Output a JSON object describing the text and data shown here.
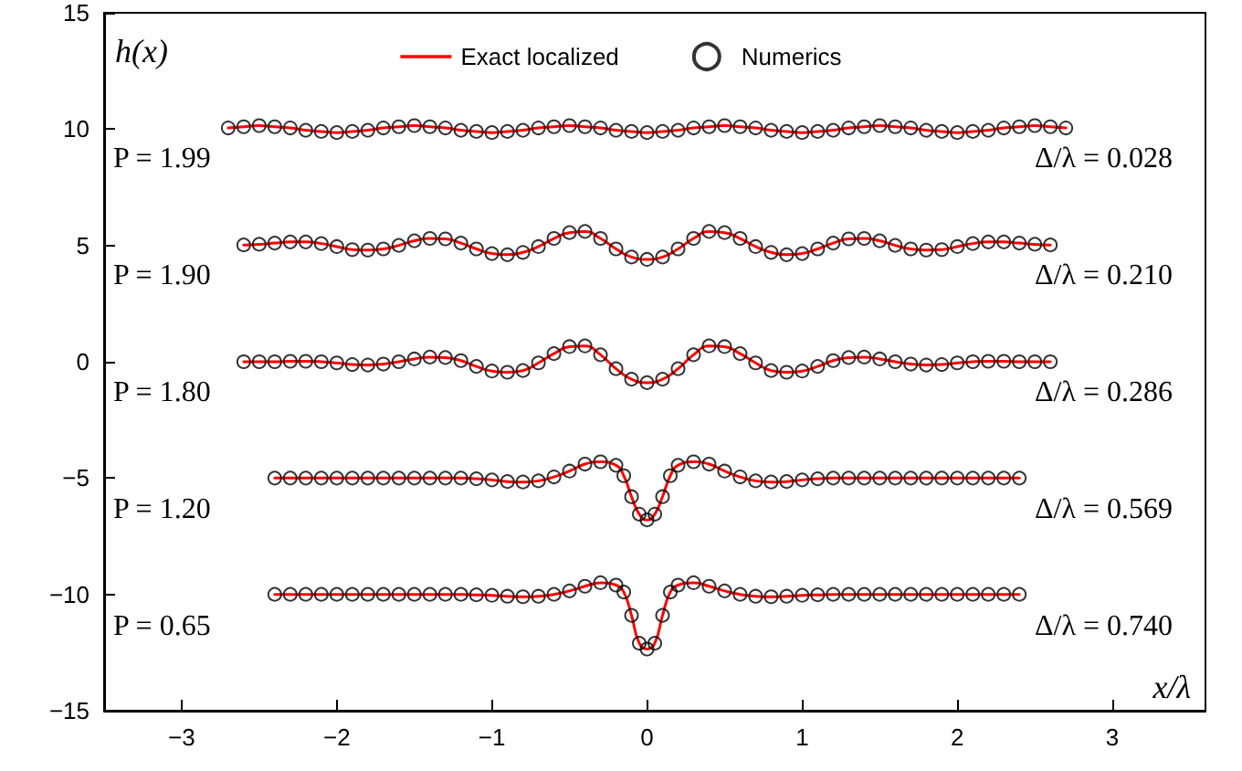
{
  "chart_data": {
    "type": "line",
    "xlabel": "x/λ",
    "ylabel": "h(x)",
    "xlim": [
      -3.5,
      3.6
    ],
    "xticks": [
      -3,
      -2,
      -1,
      0,
      1,
      2,
      3
    ],
    "ylim": [
      -15,
      15
    ],
    "yticks": [
      -15,
      -10,
      -5,
      0,
      5,
      10,
      15
    ],
    "grid": false,
    "legend": "top",
    "annotations": [
      "P = 1.99",
      "Δ/λ = 0.028",
      "P = 1.90",
      "Δ/λ = 0.210",
      "P = 1.80",
      "Δ/λ = 0.286",
      "P = 1.20",
      "Δ/λ = 0.569",
      "P = 0.65",
      "Δ/λ = 0.740"
    ],
    "series": [
      {
        "name": "Exact localized",
        "color": "#ff0000",
        "marker": "none",
        "line_style": "solid",
        "x": [
          -2.7,
          -2.6,
          -2.5,
          -2.4,
          -2.3,
          -2.2,
          -2.1,
          -2,
          -1.9,
          -1.8,
          -1.7,
          -1.6,
          -1.5,
          -1.4,
          -1.3,
          -1.2,
          -1.1,
          -1,
          -0.9,
          -0.8,
          -0.7,
          -0.6,
          -0.5,
          -0.4,
          -0.3,
          -0.2,
          -0.1,
          0,
          0.1,
          0.2,
          0.3,
          0.4,
          0.5,
          0.6,
          0.7,
          0.8,
          0.9,
          1,
          1.1,
          1.2,
          1.3,
          1.4,
          1.5,
          1.6,
          1.7,
          1.8,
          1.9,
          2,
          2.1,
          2.2,
          2.3,
          2.4,
          2.5,
          2.6,
          2.7
        ],
        "values": [
          10.05,
          10.1,
          10.15,
          10.1,
          10.05,
          9.95,
          9.9,
          9.85,
          9.9,
          9.95,
          10.05,
          10.1,
          10.15,
          10.1,
          10.05,
          9.95,
          9.9,
          9.85,
          9.9,
          9.95,
          10.05,
          10.1,
          10.15,
          10.1,
          10.05,
          9.95,
          9.9,
          9.85,
          9.9,
          9.95,
          10.05,
          10.1,
          10.15,
          10.1,
          10.05,
          9.95,
          9.9,
          9.85,
          9.9,
          9.95,
          10.05,
          10.1,
          10.15,
          10.1,
          10.05,
          9.95,
          9.9,
          9.85,
          9.9,
          9.95,
          10.05,
          10.1,
          10.15,
          10.1,
          10.05
        ]
      },
      {
        "type": "scatter",
        "name": "Numerics",
        "color": "#000000",
        "marker": "circle",
        "x": [
          -2.7,
          -2.6,
          -2.5,
          -2.4,
          -2.3,
          -2.2,
          -2.1,
          -2,
          -1.9,
          -1.8,
          -1.7,
          -1.6,
          -1.5,
          -1.4,
          -1.3,
          -1.2,
          -1.1,
          -1,
          -0.9,
          -0.8,
          -0.7,
          -0.6,
          -0.5,
          -0.4,
          -0.3,
          -0.2,
          -0.1,
          0,
          0.1,
          0.2,
          0.3,
          0.4,
          0.5,
          0.6,
          0.7,
          0.8,
          0.9,
          1,
          1.1,
          1.2,
          1.3,
          1.4,
          1.5,
          1.6,
          1.7,
          1.8,
          1.9,
          2,
          2.1,
          2.2,
          2.3,
          2.4,
          2.5,
          2.6,
          2.7
        ],
        "values": [
          10.05,
          10.1,
          10.15,
          10.1,
          10.05,
          9.95,
          9.9,
          9.85,
          9.9,
          9.95,
          10.05,
          10.1,
          10.15,
          10.1,
          10.05,
          9.95,
          9.9,
          9.85,
          9.9,
          9.95,
          10.05,
          10.1,
          10.15,
          10.1,
          10.05,
          9.95,
          9.9,
          9.85,
          9.9,
          9.95,
          10.05,
          10.1,
          10.15,
          10.1,
          10.05,
          9.95,
          9.9,
          9.85,
          9.9,
          9.95,
          10.05,
          10.1,
          10.15,
          10.1,
          10.05,
          9.95,
          9.9,
          9.85,
          9.9,
          9.95,
          10.05,
          10.1,
          10.15,
          10.1,
          10.05
        ]
      },
      {
        "color": "#ff0000",
        "marker": "none",
        "line_style": "solid",
        "x": [
          -2.6,
          -2.5,
          -2.4,
          -2.3,
          -2.2,
          -2.1,
          -2,
          -1.9,
          -1.8,
          -1.7,
          -1.6,
          -1.5,
          -1.4,
          -1.3,
          -1.2,
          -1.1,
          -1,
          -0.9,
          -0.8,
          -0.7,
          -0.6,
          -0.5,
          -0.4,
          -0.3,
          -0.2,
          -0.1,
          0,
          0.1,
          0.2,
          0.3,
          0.4,
          0.5,
          0.6,
          0.7,
          0.8,
          0.9,
          1,
          1.1,
          1.2,
          1.3,
          1.4,
          1.5,
          1.6,
          1.7,
          1.8,
          1.9,
          2,
          2.1,
          2.2,
          2.3,
          2.4,
          2.5,
          2.6
        ],
        "values": [
          5.02,
          5.05,
          5.1,
          5.15,
          5.15,
          5.08,
          4.95,
          4.82,
          4.8,
          4.85,
          5.0,
          5.2,
          5.3,
          5.28,
          5.1,
          4.85,
          4.65,
          4.6,
          4.7,
          4.95,
          5.3,
          5.55,
          5.6,
          5.3,
          4.85,
          4.5,
          4.4,
          4.5,
          4.85,
          5.3,
          5.6,
          5.55,
          5.3,
          4.95,
          4.7,
          4.6,
          4.65,
          4.85,
          5.1,
          5.28,
          5.3,
          5.2,
          5.0,
          4.85,
          4.8,
          4.82,
          4.95,
          5.08,
          5.15,
          5.15,
          5.1,
          5.05,
          5.02
        ]
      },
      {
        "type": "scatter",
        "color": "#000000",
        "marker": "circle",
        "x": [
          -2.6,
          -2.5,
          -2.4,
          -2.3,
          -2.2,
          -2.1,
          -2,
          -1.9,
          -1.8,
          -1.7,
          -1.6,
          -1.5,
          -1.4,
          -1.3,
          -1.2,
          -1.1,
          -1,
          -0.9,
          -0.8,
          -0.7,
          -0.6,
          -0.5,
          -0.4,
          -0.3,
          -0.2,
          -0.1,
          0,
          0.1,
          0.2,
          0.3,
          0.4,
          0.5,
          0.6,
          0.7,
          0.8,
          0.9,
          1,
          1.1,
          1.2,
          1.3,
          1.4,
          1.5,
          1.6,
          1.7,
          1.8,
          1.9,
          2,
          2.1,
          2.2,
          2.3,
          2.4,
          2.5,
          2.6
        ],
        "values": [
          5.02,
          5.05,
          5.1,
          5.15,
          5.15,
          5.08,
          4.95,
          4.82,
          4.8,
          4.85,
          5.0,
          5.2,
          5.3,
          5.28,
          5.1,
          4.85,
          4.65,
          4.6,
          4.7,
          4.95,
          5.3,
          5.55,
          5.6,
          5.3,
          4.85,
          4.5,
          4.4,
          4.5,
          4.85,
          5.3,
          5.6,
          5.55,
          5.3,
          4.95,
          4.7,
          4.6,
          4.65,
          4.85,
          5.1,
          5.28,
          5.3,
          5.2,
          5.0,
          4.85,
          4.8,
          4.82,
          4.95,
          5.08,
          5.15,
          5.15,
          5.1,
          5.05,
          5.02
        ]
      },
      {
        "color": "#ff0000",
        "marker": "none",
        "line_style": "solid",
        "x": [
          -2.6,
          -2.5,
          -2.4,
          -2.3,
          -2.2,
          -2.1,
          -2,
          -1.9,
          -1.8,
          -1.7,
          -1.6,
          -1.5,
          -1.4,
          -1.3,
          -1.2,
          -1.1,
          -1,
          -0.9,
          -0.8,
          -0.7,
          -0.6,
          -0.5,
          -0.4,
          -0.3,
          -0.2,
          -0.1,
          0,
          0.1,
          0.2,
          0.3,
          0.4,
          0.5,
          0.6,
          0.7,
          0.8,
          0.9,
          1,
          1.1,
          1.2,
          1.3,
          1.4,
          1.5,
          1.6,
          1.7,
          1.8,
          1.9,
          2,
          2.1,
          2.2,
          2.3,
          2.4,
          2.5,
          2.6
        ],
        "values": [
          0,
          0,
          0,
          0.02,
          0.02,
          0,
          -0.05,
          -0.12,
          -0.14,
          -0.1,
          0,
          0.12,
          0.2,
          0.18,
          0.05,
          -0.2,
          -0.4,
          -0.45,
          -0.38,
          -0.05,
          0.35,
          0.65,
          0.68,
          0.3,
          -0.3,
          -0.75,
          -0.9,
          -0.75,
          -0.3,
          0.3,
          0.68,
          0.65,
          0.35,
          -0.05,
          -0.38,
          -0.45,
          -0.4,
          -0.2,
          0.05,
          0.18,
          0.2,
          0.12,
          0,
          -0.1,
          -0.14,
          -0.12,
          -0.05,
          0,
          0.02,
          0.02,
          0,
          0,
          0
        ]
      },
      {
        "type": "scatter",
        "color": "#000000",
        "marker": "circle",
        "x": [
          -2.6,
          -2.5,
          -2.4,
          -2.3,
          -2.2,
          -2.1,
          -2,
          -1.9,
          -1.8,
          -1.7,
          -1.6,
          -1.5,
          -1.4,
          -1.3,
          -1.2,
          -1.1,
          -1,
          -0.9,
          -0.8,
          -0.7,
          -0.6,
          -0.5,
          -0.4,
          -0.3,
          -0.2,
          -0.1,
          0,
          0.1,
          0.2,
          0.3,
          0.4,
          0.5,
          0.6,
          0.7,
          0.8,
          0.9,
          1,
          1.1,
          1.2,
          1.3,
          1.4,
          1.5,
          1.6,
          1.7,
          1.8,
          1.9,
          2,
          2.1,
          2.2,
          2.3,
          2.4,
          2.5,
          2.6
        ],
        "values": [
          0,
          0,
          0,
          0.02,
          0.02,
          0,
          -0.05,
          -0.12,
          -0.14,
          -0.1,
          0,
          0.12,
          0.2,
          0.18,
          0.05,
          -0.2,
          -0.4,
          -0.45,
          -0.38,
          -0.05,
          0.35,
          0.65,
          0.68,
          0.3,
          -0.3,
          -0.75,
          -0.9,
          -0.75,
          -0.3,
          0.3,
          0.68,
          0.65,
          0.35,
          -0.05,
          -0.38,
          -0.45,
          -0.4,
          -0.2,
          0.05,
          0.18,
          0.2,
          0.12,
          0,
          -0.1,
          -0.14,
          -0.12,
          -0.05,
          0,
          0.02,
          0.02,
          0,
          0,
          0
        ]
      },
      {
        "color": "#ff0000",
        "marker": "none",
        "line_style": "solid",
        "x": [
          -2.4,
          -2.3,
          -2.2,
          -2.1,
          -2,
          -1.9,
          -1.8,
          -1.7,
          -1.6,
          -1.5,
          -1.4,
          -1.3,
          -1.2,
          -1.1,
          -1,
          -0.9,
          -0.8,
          -0.7,
          -0.6,
          -0.5,
          -0.4,
          -0.3,
          -0.2,
          -0.15,
          -0.1,
          -0.05,
          0,
          0.05,
          0.1,
          0.15,
          0.2,
          0.3,
          0.4,
          0.5,
          0.6,
          0.7,
          0.8,
          0.9,
          1,
          1.1,
          1.2,
          1.3,
          1.4,
          1.5,
          1.6,
          1.7,
          1.8,
          1.9,
          2,
          2.1,
          2.2,
          2.3,
          2.4
        ],
        "values": [
          -5,
          -5,
          -5,
          -5,
          -5,
          -5,
          -5,
          -5,
          -5,
          -5,
          -5,
          -5,
          -5,
          -5.03,
          -5.08,
          -5.15,
          -5.17,
          -5.12,
          -4.95,
          -4.7,
          -4.4,
          -4.3,
          -4.45,
          -4.9,
          -5.8,
          -6.55,
          -6.8,
          -6.55,
          -5.8,
          -4.9,
          -4.45,
          -4.3,
          -4.4,
          -4.7,
          -4.95,
          -5.12,
          -5.17,
          -5.15,
          -5.08,
          -5.03,
          -5,
          -5,
          -5,
          -5,
          -5,
          -5,
          -5,
          -5,
          -5,
          -5,
          -5,
          -5,
          -5
        ]
      },
      {
        "type": "scatter",
        "color": "#000000",
        "marker": "circle",
        "x": [
          -2.4,
          -2.3,
          -2.2,
          -2.1,
          -2,
          -1.9,
          -1.8,
          -1.7,
          -1.6,
          -1.5,
          -1.4,
          -1.3,
          -1.2,
          -1.1,
          -1,
          -0.9,
          -0.8,
          -0.7,
          -0.6,
          -0.5,
          -0.4,
          -0.3,
          -0.2,
          -0.15,
          -0.1,
          -0.05,
          0,
          0.05,
          0.1,
          0.15,
          0.2,
          0.3,
          0.4,
          0.5,
          0.6,
          0.7,
          0.8,
          0.9,
          1,
          1.1,
          1.2,
          1.3,
          1.4,
          1.5,
          1.6,
          1.7,
          1.8,
          1.9,
          2,
          2.1,
          2.2,
          2.3,
          2.4
        ],
        "values": [
          -5,
          -5,
          -5,
          -5,
          -5,
          -5,
          -5,
          -5,
          -5,
          -5,
          -5,
          -5,
          -5,
          -5.03,
          -5.08,
          -5.15,
          -5.17,
          -5.12,
          -4.95,
          -4.7,
          -4.4,
          -4.3,
          -4.45,
          -4.9,
          -5.8,
          -6.55,
          -6.8,
          -6.55,
          -5.8,
          -4.9,
          -4.45,
          -4.3,
          -4.4,
          -4.7,
          -4.95,
          -5.12,
          -5.17,
          -5.15,
          -5.08,
          -5.03,
          -5,
          -5,
          -5,
          -5,
          -5,
          -5,
          -5,
          -5,
          -5,
          -5,
          -5,
          -5,
          -5
        ]
      },
      {
        "color": "#ff0000",
        "marker": "none",
        "line_style": "solid",
        "x": [
          -2.4,
          -2.3,
          -2.2,
          -2.1,
          -2,
          -1.9,
          -1.8,
          -1.7,
          -1.6,
          -1.5,
          -1.4,
          -1.3,
          -1.2,
          -1.1,
          -1,
          -0.9,
          -0.8,
          -0.7,
          -0.6,
          -0.5,
          -0.4,
          -0.3,
          -0.2,
          -0.15,
          -0.1,
          -0.05,
          0,
          0.05,
          0.1,
          0.15,
          0.2,
          0.3,
          0.4,
          0.5,
          0.6,
          0.7,
          0.8,
          0.9,
          1,
          1.1,
          1.2,
          1.3,
          1.4,
          1.5,
          1.6,
          1.7,
          1.8,
          1.9,
          2,
          2.1,
          2.2,
          2.3,
          2.4
        ],
        "values": [
          -10,
          -10,
          -10,
          -10,
          -10,
          -10,
          -10,
          -10,
          -10,
          -10,
          -10,
          -10,
          -10,
          -10.02,
          -10.04,
          -10.08,
          -10.1,
          -10.08,
          -10,
          -9.85,
          -9.65,
          -9.5,
          -9.6,
          -9.9,
          -10.9,
          -12.1,
          -12.35,
          -12.1,
          -10.9,
          -9.9,
          -9.6,
          -9.5,
          -9.65,
          -9.85,
          -10,
          -10.08,
          -10.1,
          -10.08,
          -10.04,
          -10.02,
          -10,
          -10,
          -10,
          -10,
          -10,
          -10,
          -10,
          -10,
          -10,
          -10,
          -10,
          -10,
          -10
        ]
      },
      {
        "type": "scatter",
        "color": "#000000",
        "marker": "circle",
        "x": [
          -2.4,
          -2.3,
          -2.2,
          -2.1,
          -2,
          -1.9,
          -1.8,
          -1.7,
          -1.6,
          -1.5,
          -1.4,
          -1.3,
          -1.2,
          -1.1,
          -1,
          -0.9,
          -0.8,
          -0.7,
          -0.6,
          -0.5,
          -0.4,
          -0.3,
          -0.2,
          -0.15,
          -0.1,
          -0.05,
          0,
          0.05,
          0.1,
          0.15,
          0.2,
          0.3,
          0.4,
          0.5,
          0.6,
          0.7,
          0.8,
          0.9,
          1,
          1.1,
          1.2,
          1.3,
          1.4,
          1.5,
          1.6,
          1.7,
          1.8,
          1.9,
          2,
          2.1,
          2.2,
          2.3,
          2.4
        ],
        "values": [
          -10,
          -10,
          -10,
          -10,
          -10,
          -10,
          -10,
          -10,
          -10,
          -10,
          -10,
          -10,
          -10,
          -10.02,
          -10.04,
          -10.08,
          -10.1,
          -10.08,
          -10,
          -9.85,
          -9.65,
          -9.5,
          -9.6,
          -9.9,
          -10.9,
          -12.1,
          -12.35,
          -12.1,
          -10.9,
          -9.9,
          -9.6,
          -9.5,
          -9.65,
          -9.85,
          -10,
          -10.08,
          -10.1,
          -10.08,
          -10.04,
          -10.02,
          -10,
          -10,
          -10,
          -10,
          -10,
          -10,
          -10,
          -10,
          -10,
          -10,
          -10,
          -10,
          -10
        ]
      }
    ]
  }
}
